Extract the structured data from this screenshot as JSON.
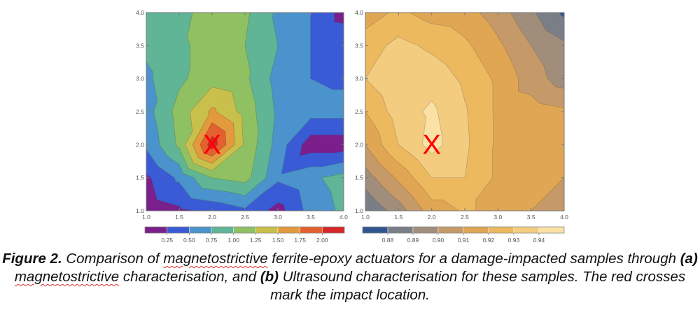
{
  "chart_data": [
    {
      "type": "heatmap",
      "panel": "a",
      "title": "",
      "xlabel": "",
      "ylabel": "",
      "xlim": [
        1.0,
        4.0
      ],
      "ylim": [
        1.0,
        4.0
      ],
      "x_ticks": [
        "1.0",
        "1.5",
        "2.0",
        "2.5",
        "3.0",
        "3.5",
        "4.0"
      ],
      "y_ticks": [
        "1.0",
        "1.5",
        "2.0",
        "2.5",
        "3.0",
        "3.5",
        "4.0"
      ],
      "grid_x": [
        1.0,
        1.5,
        2.0,
        2.5,
        3.0,
        3.5,
        4.0
      ],
      "grid_y": [
        1.0,
        1.5,
        2.0,
        2.5,
        3.0,
        3.5,
        4.0
      ],
      "values": [
        [
          0.1,
          0.2,
          0.3,
          0.45,
          0.15,
          0.6,
          0.8
        ],
        [
          0.2,
          0.55,
          1.0,
          1.1,
          0.55,
          0.7,
          0.85
        ],
        [
          0.55,
          1.05,
          2.15,
          1.2,
          0.65,
          0.1,
          0.1
        ],
        [
          0.65,
          1.1,
          1.55,
          1.15,
          0.7,
          0.6,
          0.6
        ],
        [
          0.7,
          0.95,
          1.15,
          1.05,
          0.65,
          0.5,
          0.45
        ],
        [
          0.8,
          0.95,
          1.1,
          1.0,
          0.75,
          0.5,
          0.45
        ],
        [
          0.75,
          0.9,
          1.15,
          1.05,
          0.7,
          0.5,
          0.15
        ]
      ],
      "levels": [
        0.25,
        0.5,
        0.75,
        1.0,
        1.25,
        1.5,
        1.75,
        2.0
      ],
      "colorbar_labels": [
        "0.25",
        "0.50",
        "0.75",
        "1.00",
        "1.25",
        "1.50",
        "1.75",
        "2.00"
      ],
      "band_colors": [
        "#7a1f8c",
        "#3a5bd6",
        "#4a93cc",
        "#5fb595",
        "#8fc163",
        "#c9c04b",
        "#e39a3c",
        "#e4612f",
        "#d7262a"
      ],
      "marker": {
        "x": 2.0,
        "y": 2.0,
        "symbol": "X",
        "color": "#ff0000"
      }
    },
    {
      "type": "heatmap",
      "panel": "b",
      "title": "",
      "xlabel": "",
      "ylabel": "",
      "xlim": [
        1.0,
        4.0
      ],
      "ylim": [
        1.0,
        4.0
      ],
      "x_ticks": [
        "1.0",
        "1.5",
        "2.0",
        "2.5",
        "3.0",
        "3.5",
        "4.0"
      ],
      "y_ticks": [
        "1.0",
        "1.5",
        "2.0",
        "2.5",
        "3.0",
        "3.5",
        "4.0"
      ],
      "grid_x": [
        1.0,
        1.5,
        2.0,
        2.5,
        3.0,
        3.5,
        4.0
      ],
      "grid_y": [
        1.0,
        1.5,
        2.0,
        2.5,
        3.0,
        3.5,
        4.0
      ],
      "values": [
        [
          0.88,
          0.895,
          0.915,
          0.921,
          0.918,
          0.91,
          0.9
        ],
        [
          0.895,
          0.912,
          0.93,
          0.93,
          0.918,
          0.915,
          0.91
        ],
        [
          0.91,
          0.93,
          0.944,
          0.932,
          0.918,
          0.915,
          0.912
        ],
        [
          0.92,
          0.935,
          0.942,
          0.931,
          0.918,
          0.915,
          0.912
        ],
        [
          0.93,
          0.94,
          0.936,
          0.928,
          0.918,
          0.905,
          0.895
        ],
        [
          0.925,
          0.933,
          0.928,
          0.922,
          0.912,
          0.9,
          0.892
        ],
        [
          0.915,
          0.922,
          0.916,
          0.914,
          0.905,
          0.892,
          0.878
        ]
      ],
      "levels": [
        0.88,
        0.89,
        0.9,
        0.91,
        0.92,
        0.93,
        0.94
      ],
      "colorbar_labels": [
        "0.88",
        "0.89",
        "0.90",
        "0.91",
        "0.92",
        "0.93",
        "0.94"
      ],
      "band_colors": [
        "#2f568e",
        "#7a7e86",
        "#a08e7a",
        "#c69a68",
        "#e0a654",
        "#edb95e",
        "#f4cc80",
        "#fae1a4"
      ],
      "marker": {
        "x": 2.0,
        "y": 2.0,
        "symbol": "X",
        "color": "#ff0000"
      }
    }
  ],
  "caption": {
    "figure_label": "Figure 2.",
    "part1": " Comparison of ",
    "word_magneto_1": "magnetostrictive",
    "part2": " ferrite-epoxy actuators for a damage-impacted samples through ",
    "label_a": "(a)",
    "part3": " ",
    "word_magneto_2": "magnetostrictive",
    "part4": " characterisation, and ",
    "label_b": "(b)",
    "part5": " Ultrasound characterisation for these samples. The red crosses mark the impact location."
  }
}
